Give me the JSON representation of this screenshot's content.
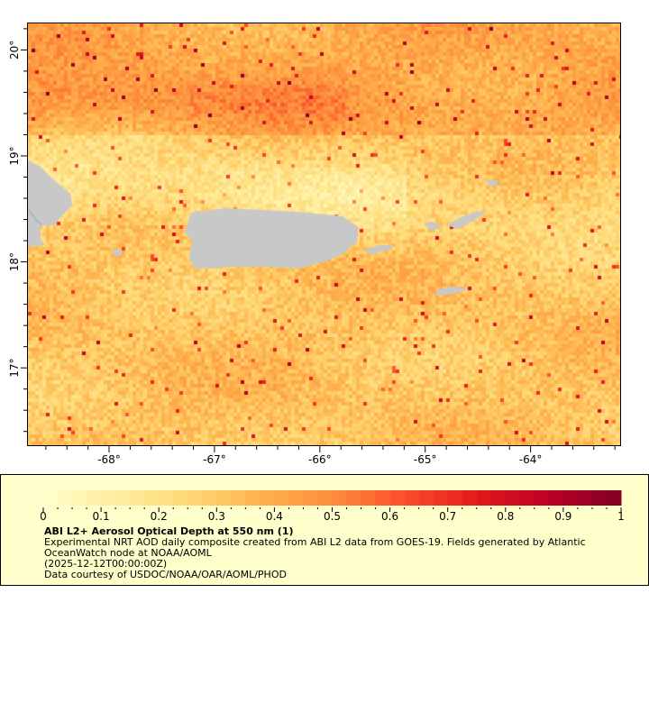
{
  "chart_data": {
    "type": "heatmap",
    "variable": "ABI L2+ Aerosol Optical Depth at 550 nm",
    "units": "1",
    "lon_range": [
      -68.77,
      -63.15
    ],
    "lat_range": [
      16.27,
      20.25
    ],
    "x_ticks": [
      "-68°",
      "-67°",
      "-66°",
      "-65°",
      "-64°"
    ],
    "x_tick_values": [
      -68,
      -67,
      -66,
      -65,
      -64
    ],
    "y_ticks": [
      "17°",
      "18°",
      "19°",
      "20°"
    ],
    "y_tick_values": [
      17,
      18,
      19,
      20
    ],
    "colorbar": {
      "range": [
        0,
        1
      ],
      "colormap": "YlOrRd",
      "tick_labels": [
        "0",
        "0.1",
        "0.2",
        "0.3",
        "0.4",
        "0.5",
        "0.6",
        "0.7",
        "0.8",
        "0.9",
        "1"
      ],
      "tick_values": [
        0,
        0.1,
        0.2,
        0.3,
        0.4,
        0.5,
        0.6,
        0.7,
        0.8,
        0.9,
        1
      ]
    },
    "land_color": "#c8c8c8",
    "legend_background": "#ffffcc"
  },
  "legend": {
    "title": "ABI L2+ Aerosol Optical Depth at 550 nm (1)",
    "line1": "Experimental NRT AOD daily composite created from ABI L2 data from GOES-19. Fields generated by Atlantic",
    "line2": "OceanWatch node at NOAA/AOML",
    "time": "(2025-12-12T00:00:00Z)",
    "credit": "Data courtesy of USDOC/NOAA/OAR/AOML/PHOD"
  }
}
